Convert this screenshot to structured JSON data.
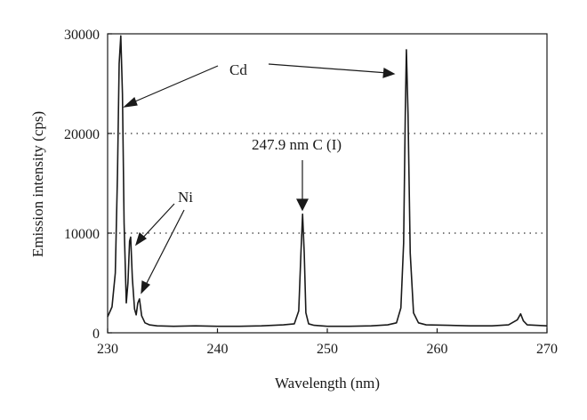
{
  "chart_data": {
    "type": "line",
    "xlabel": "Wavelength (nm)",
    "ylabel": "Emission intensity (cps)",
    "xlim": [
      230,
      270
    ],
    "ylim": [
      0,
      30000
    ],
    "xticks": [
      230,
      240,
      250,
      260,
      270
    ],
    "yticks": [
      0,
      10000,
      20000,
      30000
    ],
    "grid": "horizontal dotted at 10000 and 20000",
    "line_color": "#1a1a1a",
    "series": [
      {
        "x": [
          230.0,
          230.4,
          230.7,
          230.9,
          231.05,
          231.2,
          231.35,
          231.5,
          231.7,
          231.85,
          232.0,
          232.1,
          232.25,
          232.45,
          232.6,
          232.75,
          232.9,
          233.1,
          233.4,
          233.8,
          234.5,
          236,
          238,
          240,
          242,
          244,
          246,
          247.0,
          247.4,
          247.6,
          247.75,
          247.9,
          248.05,
          248.3,
          248.8,
          250,
          252,
          254,
          255.5,
          256.3,
          256.7,
          256.95,
          257.1,
          257.2,
          257.35,
          257.55,
          257.85,
          258.3,
          259,
          261,
          263,
          265,
          266.5,
          267.3,
          267.6,
          267.85,
          268.2,
          269,
          270
        ],
        "y": [
          1600,
          2600,
          6000,
          16000,
          27000,
          29800,
          24000,
          11000,
          3000,
          5000,
          9200,
          9600,
          5500,
          2400,
          1800,
          3000,
          3400,
          1700,
          1000,
          800,
          700,
          650,
          700,
          650,
          650,
          700,
          800,
          900,
          2200,
          8000,
          11900,
          8000,
          2000,
          900,
          750,
          650,
          650,
          700,
          800,
          1000,
          2500,
          9000,
          22000,
          28400,
          22000,
          8000,
          2000,
          1000,
          800,
          750,
          700,
          700,
          800,
          1300,
          1900,
          1200,
          800,
          750,
          700
        ]
      }
    ],
    "annotations": [
      {
        "text": "Cd"
      },
      {
        "text": "Ni"
      },
      {
        "text": "247.9 nm C (I)"
      }
    ]
  }
}
